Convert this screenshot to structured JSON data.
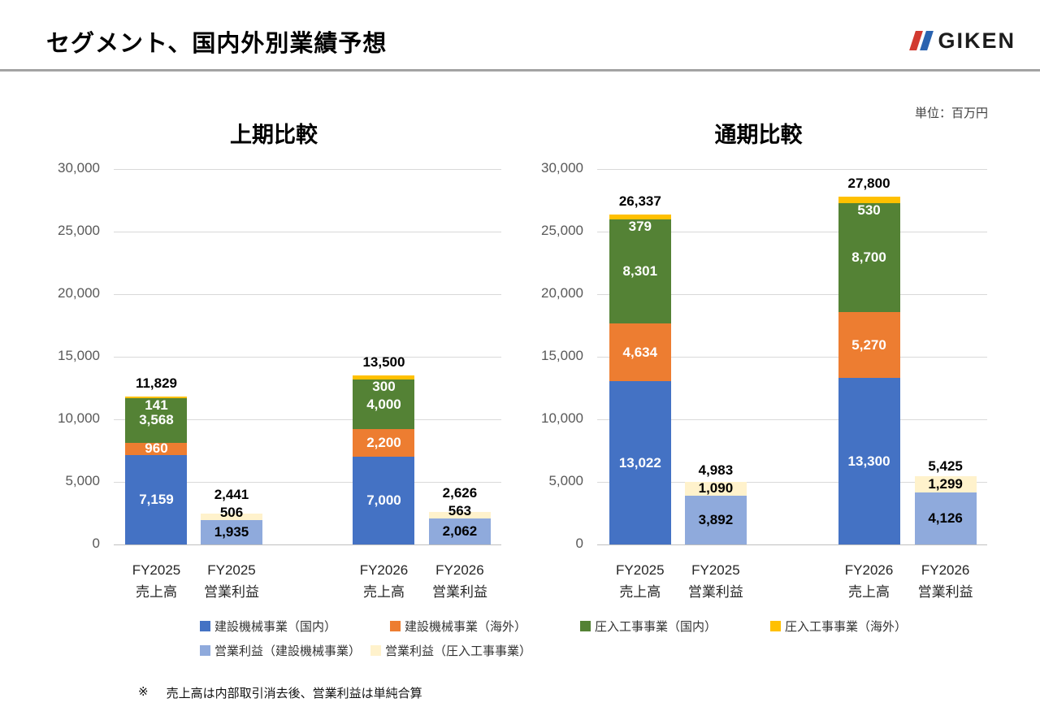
{
  "header": {
    "title": "セグメント、国内外別業績予想",
    "logo_text": "GIKEN",
    "logo_colors": {
      "red": "#d23a30",
      "blue": "#2a63b0"
    }
  },
  "unit_label": "単位：百万円",
  "footnote": {
    "marker": "※",
    "text": "売上高は内部取引消去後、営業利益は単純合算"
  },
  "colors": {
    "sales_domestic_machinery": "#4472C4",
    "sales_overseas_machinery": "#ED7D31",
    "sales_domestic_pressin": "#548235",
    "sales_overseas_pressin": "#FFC000",
    "profit_machinery": "#8FAADC",
    "profit_pressin": "#FFF2CC"
  },
  "legend": {
    "rows": [
      [
        {
          "label": "建設機械事業（国内）",
          "color": "sales_domestic_machinery"
        },
        {
          "label": "建設機械事業（海外）",
          "color": "sales_overseas_machinery"
        },
        {
          "label": "圧入工事事業（国内）",
          "color": "sales_domestic_pressin"
        },
        {
          "label": "圧入工事事業（海外）",
          "color": "sales_overseas_pressin"
        }
      ],
      [
        {
          "label": "営業利益（建設機械事業）",
          "color": "profit_machinery"
        },
        {
          "label": "営業利益（圧入工事事業）",
          "color": "profit_pressin"
        }
      ]
    ]
  },
  "chart_data": [
    {
      "type": "bar",
      "title": "上期比較",
      "ylabel": "",
      "xlabel": "",
      "ylim": [
        0,
        30000
      ],
      "grid": true,
      "yticks": [
        "30,000",
        "25,000",
        "20,000",
        "15,000",
        "10,000",
        "5,000",
        "0"
      ],
      "groups": [
        {
          "x1": "FY2025",
          "x2": "売上高",
          "kind": "sales",
          "total_v": 11829,
          "total": "11,829",
          "segments": [
            {
              "name": "建設機械事業（国内）",
              "color": "sales_domestic_machinery",
              "v": 7159,
              "label": "7,159"
            },
            {
              "name": "建設機械事業（海外）",
              "color": "sales_overseas_machinery",
              "v": 960,
              "label": "960"
            },
            {
              "name": "圧入工事事業（国内）",
              "color": "sales_domestic_pressin",
              "v": 3568,
              "label": "3,568"
            },
            {
              "name": "圧入工事事業（海外）",
              "color": "sales_overseas_pressin",
              "v": 141,
              "label": "141"
            }
          ]
        },
        {
          "x1": "FY2025",
          "x2": "営業利益",
          "kind": "profit",
          "total_v": 2441,
          "total": "2,441",
          "segments": [
            {
              "name": "営業利益（建設機械事業）",
              "color": "profit_machinery",
              "v": 1935,
              "label": "1,935"
            },
            {
              "name": "営業利益（圧入工事事業）",
              "color": "profit_pressin",
              "v": 506,
              "label": "506"
            }
          ]
        },
        {
          "x1": "FY2026",
          "x2": "売上高",
          "kind": "sales",
          "total_v": 13500,
          "total": "13,500",
          "segments": [
            {
              "name": "建設機械事業（国内）",
              "color": "sales_domestic_machinery",
              "v": 7000,
              "label": "7,000"
            },
            {
              "name": "建設機械事業（海外）",
              "color": "sales_overseas_machinery",
              "v": 2200,
              "label": "2,200"
            },
            {
              "name": "圧入工事事業（国内）",
              "color": "sales_domestic_pressin",
              "v": 4000,
              "label": "4,000"
            },
            {
              "name": "圧入工事事業（海外）",
              "color": "sales_overseas_pressin",
              "v": 300,
              "label": "300"
            }
          ]
        },
        {
          "x1": "FY2026",
          "x2": "営業利益",
          "kind": "profit",
          "total_v": 2626,
          "total": "2,626",
          "segments": [
            {
              "name": "営業利益（建設機械事業）",
              "color": "profit_machinery",
              "v": 2062,
              "label": "2,062"
            },
            {
              "name": "営業利益（圧入工事事業）",
              "color": "profit_pressin",
              "v": 563,
              "label": "563"
            }
          ]
        }
      ]
    },
    {
      "type": "bar",
      "title": "通期比較",
      "ylabel": "",
      "xlabel": "",
      "ylim": [
        0,
        30000
      ],
      "grid": true,
      "yticks": [
        "30,000",
        "25,000",
        "20,000",
        "15,000",
        "10,000",
        "5,000",
        "0"
      ],
      "groups": [
        {
          "x1": "FY2025",
          "x2": "売上高",
          "kind": "sales",
          "total_v": 26337,
          "total": "26,337",
          "segments": [
            {
              "name": "建設機械事業（国内）",
              "color": "sales_domestic_machinery",
              "v": 13022,
              "label": "13,022"
            },
            {
              "name": "建設機械事業（海外）",
              "color": "sales_overseas_machinery",
              "v": 4634,
              "label": "4,634"
            },
            {
              "name": "圧入工事事業（国内）",
              "color": "sales_domestic_pressin",
              "v": 8301,
              "label": "8,301"
            },
            {
              "name": "圧入工事事業（海外）",
              "color": "sales_overseas_pressin",
              "v": 379,
              "label": "379"
            }
          ]
        },
        {
          "x1": "FY2025",
          "x2": "営業利益",
          "kind": "profit",
          "total_v": 4983,
          "total": "4,983",
          "segments": [
            {
              "name": "営業利益（建設機械事業）",
              "color": "profit_machinery",
              "v": 3892,
              "label": "3,892"
            },
            {
              "name": "営業利益（圧入工事事業）",
              "color": "profit_pressin",
              "v": 1090,
              "label": "1,090"
            }
          ]
        },
        {
          "x1": "FY2026",
          "x2": "売上高",
          "kind": "sales",
          "total_v": 27800,
          "total": "27,800",
          "segments": [
            {
              "name": "建設機械事業（国内）",
              "color": "sales_domestic_machinery",
              "v": 13300,
              "label": "13,300"
            },
            {
              "name": "建設機械事業（海外）",
              "color": "sales_overseas_machinery",
              "v": 5270,
              "label": "5,270"
            },
            {
              "name": "圧入工事事業（国内）",
              "color": "sales_domestic_pressin",
              "v": 8700,
              "label": "8,700"
            },
            {
              "name": "圧入工事事業（海外）",
              "color": "sales_overseas_pressin",
              "v": 530,
              "label": "530"
            }
          ]
        },
        {
          "x1": "FY2026",
          "x2": "営業利益",
          "kind": "profit",
          "total_v": 5425,
          "total": "5,425",
          "segments": [
            {
              "name": "営業利益（建設機械事業）",
              "color": "profit_machinery",
              "v": 4126,
              "label": "4,126"
            },
            {
              "name": "営業利益（圧入工事事業）",
              "color": "profit_pressin",
              "v": 1299,
              "label": "1,299"
            }
          ]
        }
      ]
    }
  ]
}
